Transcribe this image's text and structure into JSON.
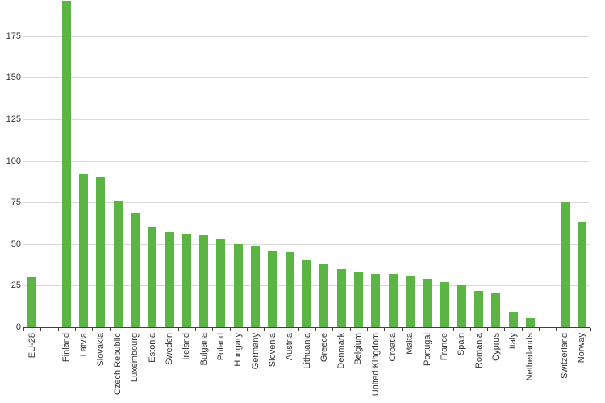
{
  "chart_data": {
    "type": "bar",
    "title": "",
    "xlabel": "",
    "ylabel": "",
    "legend": "none",
    "grid": "horizontal",
    "categories": [
      "EU-28",
      "Finland",
      "Latvia",
      "Slovakia",
      "Czech Republic",
      "Luxembourg",
      "Estonia",
      "Sweden",
      "Ireland",
      "Bulgaria",
      "Poland",
      "Hungary",
      "Germany",
      "Slovenia",
      "Austria",
      "Lithuania",
      "Greece",
      "Denmark",
      "Belgium",
      "United Kingdom",
      "Croatia",
      "Malta",
      "Portugal",
      "France",
      "Spain",
      "Romania",
      "Cyprus",
      "Italy",
      "Netherlands",
      "Switzerland",
      "Norway"
    ],
    "values": [
      30,
      196,
      92,
      90,
      76,
      69,
      60,
      57,
      56,
      55,
      53,
      50,
      49,
      46,
      45,
      40,
      38,
      35,
      33,
      32,
      32,
      31,
      29,
      27,
      25,
      22,
      21,
      9,
      6,
      75,
      63
    ],
    "gap_after_indices": [
      0,
      28
    ],
    "y_ticks": [
      0,
      25,
      50,
      75,
      100,
      125,
      150,
      175
    ],
    "ylim": [
      0,
      197
    ],
    "bar_color": "#5cb444",
    "gridline_color": "#d9d9d9",
    "axis_color": "#404040",
    "label_color": "#333333"
  }
}
